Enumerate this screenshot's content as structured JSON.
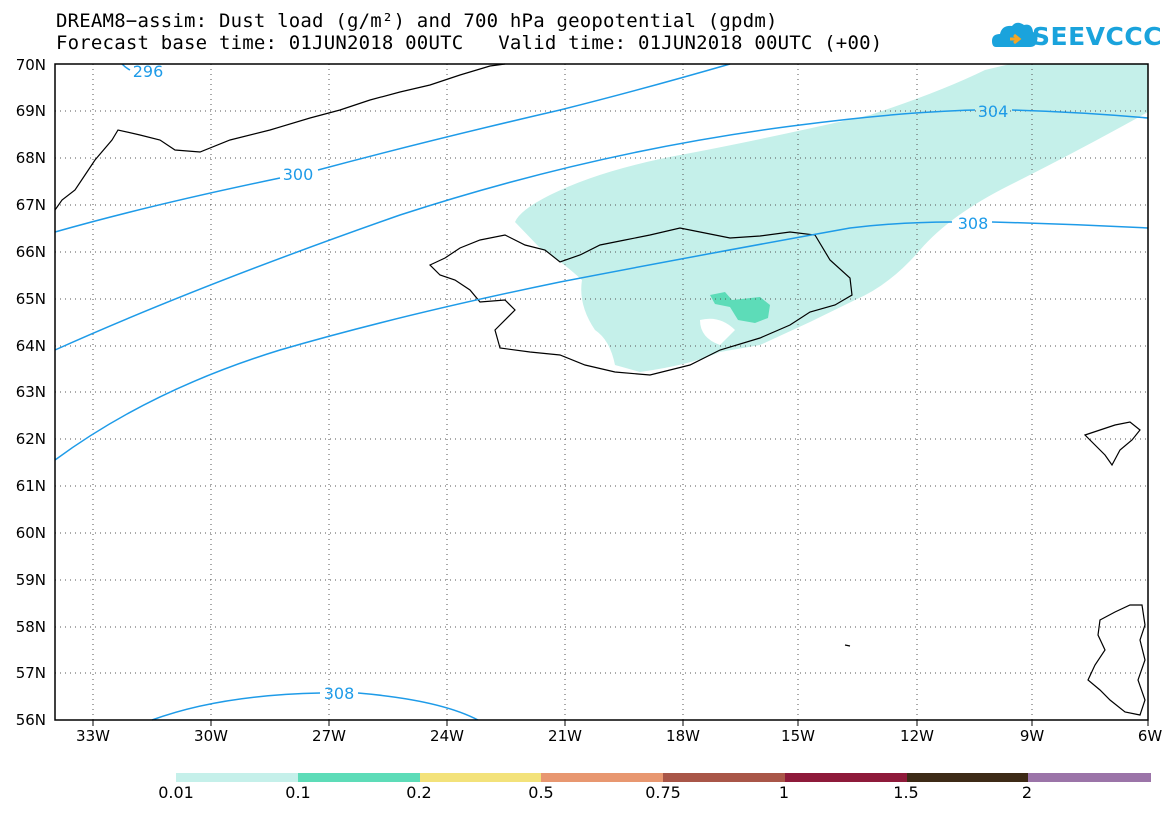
{
  "title_line1": "DREAM8−assim: Dust load (g/m²) and 700 hPa geopotential (gpdm)",
  "title_line2": "Forecast base time: 01JUN2018 00UTC   Valid time: 01JUN2018 00UTC (+00)",
  "logo_text": "SEEVCCC",
  "lat_labels": [
    "70N",
    "69N",
    "68N",
    "67N",
    "66N",
    "65N",
    "64N",
    "63N",
    "62N",
    "61N",
    "60N",
    "59N",
    "58N",
    "57N",
    "56N"
  ],
  "lon_labels": [
    "33W",
    "30W",
    "27W",
    "24W",
    "21W",
    "18W",
    "15W",
    "12W",
    "9W",
    "6W"
  ],
  "contour_labels": {
    "c296": "296",
    "c300": "300",
    "c304": "304",
    "c308a": "308",
    "c308b": "308"
  },
  "colorbar": {
    "labels": [
      "0.01",
      "0.1",
      "0.2",
      "0.5",
      "0.75",
      "1",
      "1.5",
      "2"
    ],
    "colors": [
      "#c5f0ea",
      "#5ddcb8",
      "#f3e27a",
      "#e89770",
      "#a95648",
      "#8e1a3a",
      "#3d2a16",
      "#9b74a8"
    ]
  },
  "colors": {
    "contour": "#1e9be8",
    "dust_low": "#c5f0ea",
    "dust_mid": "#5ddcb8",
    "coast": "#000000",
    "brand": "#1aa3dc"
  }
}
